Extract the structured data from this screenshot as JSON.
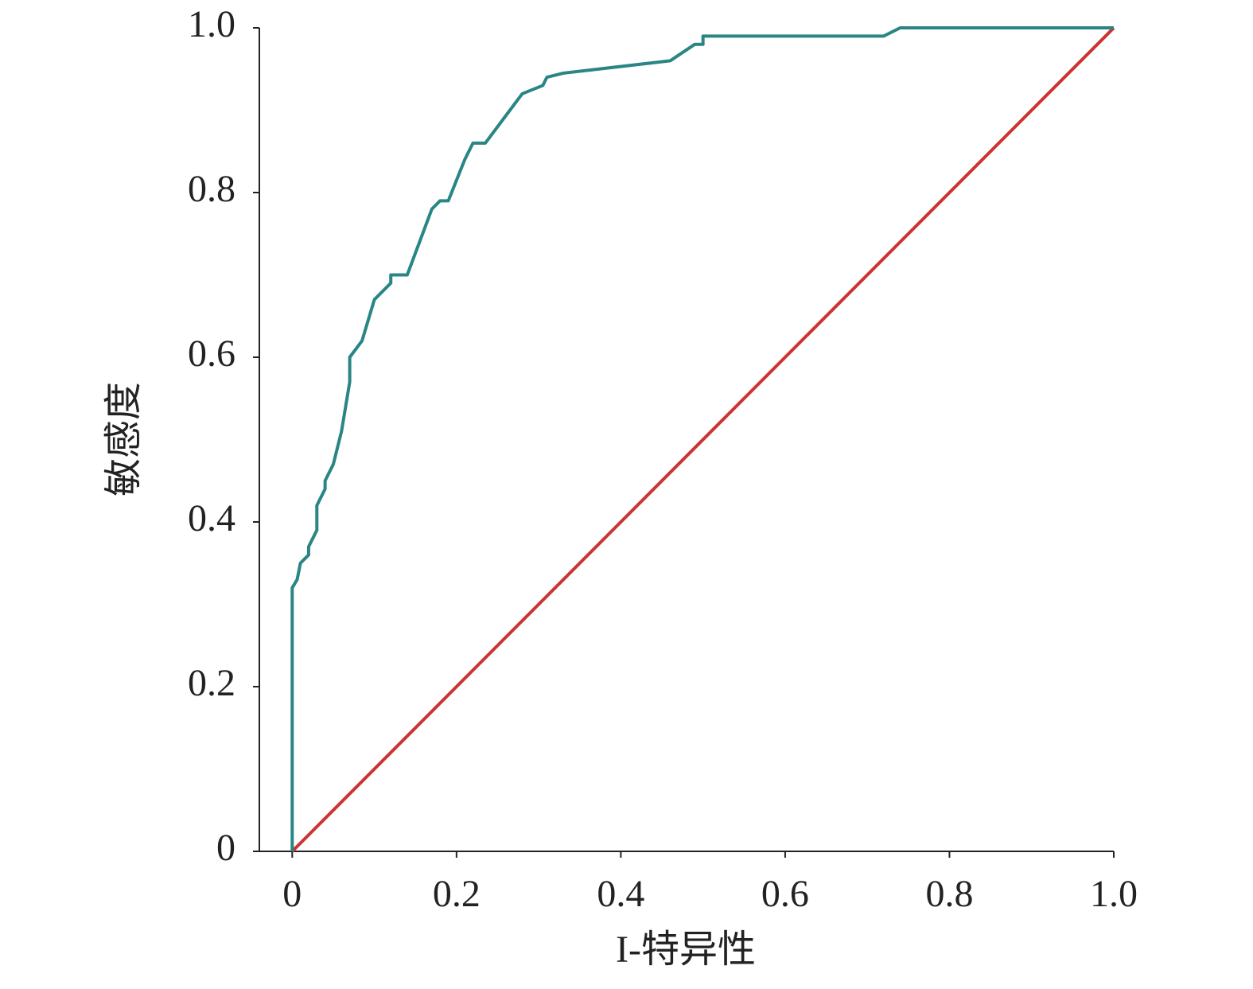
{
  "chart_data": {
    "type": "line",
    "x_label": "I-特异性",
    "y_label": "敏感度",
    "xlim": [
      -0.04,
      1.0
    ],
    "ylim": [
      0,
      1
    ],
    "xticks": [
      0,
      0.2,
      0.4,
      0.6,
      0.8,
      {
        "value": 1,
        "label": "1.0"
      }
    ],
    "yticks": [
      0,
      0.2,
      0.4,
      0.6,
      0.8,
      {
        "value": 1,
        "label": "1.0"
      }
    ],
    "grid": false,
    "series": [
      {
        "color": "#2a8585",
        "x": [
          0,
          0,
          0.006,
          0.01,
          0.02,
          0.02,
          0.03,
          0.03,
          0.04,
          0.04,
          0.05,
          0.06,
          0.07,
          0.07,
          0.085,
          0.1,
          0.12,
          0.12,
          0.14,
          0.17,
          0.18,
          0.19,
          0.21,
          0.22,
          0.235,
          0.28,
          0.305,
          0.31,
          0.33,
          0.46,
          0.49,
          0.5,
          0.5,
          0.72,
          0.74,
          1
        ],
        "values": [
          0,
          0.32,
          0.33,
          0.35,
          0.36,
          0.37,
          0.39,
          0.42,
          0.44,
          0.45,
          0.47,
          0.51,
          0.57,
          0.6,
          0.62,
          0.67,
          0.69,
          0.7,
          0.7,
          0.78,
          0.79,
          0.79,
          0.84,
          0.86,
          0.86,
          0.92,
          0.93,
          0.94,
          0.945,
          0.96,
          0.98,
          0.98,
          0.99,
          0.99,
          1.0,
          1.0
        ]
      },
      {
        "color": "#cc3333",
        "x": [
          0,
          1
        ],
        "values": [
          0,
          1
        ]
      }
    ]
  }
}
